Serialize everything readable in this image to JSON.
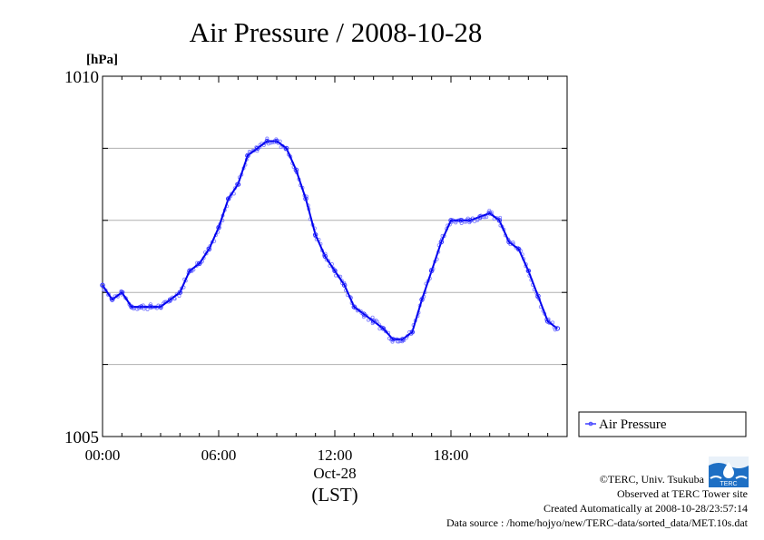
{
  "chart_data": {
    "type": "line",
    "title": "Air Pressure / 2008-10-28",
    "ylabel": "[hPa]",
    "xlabel": "Oct-28",
    "xsublabel": "(LST)",
    "ylim": [
      1005,
      1010
    ],
    "xlim": [
      0,
      24
    ],
    "y_tick_labels": [
      "1005",
      "1010"
    ],
    "x_tick_labels": [
      "00:00",
      "06:00",
      "12:00",
      "18:00"
    ],
    "grid": true,
    "legend_position": "right",
    "series": [
      {
        "name": "Air Pressure",
        "color": "#0000ff",
        "x": [
          0,
          0.5,
          1,
          1.5,
          2,
          2.5,
          3,
          3.5,
          4,
          4.5,
          5,
          5.5,
          6,
          6.5,
          7,
          7.5,
          8,
          8.5,
          9,
          9.5,
          10,
          10.5,
          11,
          11.5,
          12,
          12.5,
          13,
          13.5,
          14,
          14.5,
          15,
          15.5,
          16,
          16.5,
          17,
          17.5,
          18,
          18.5,
          19,
          19.5,
          20,
          20.5,
          21,
          21.5,
          22,
          22.5,
          23,
          23.5
        ],
        "values": [
          1007.1,
          1006.9,
          1007.0,
          1006.8,
          1006.8,
          1006.8,
          1006.8,
          1006.9,
          1007.0,
          1007.3,
          1007.4,
          1007.6,
          1007.9,
          1008.3,
          1008.5,
          1008.9,
          1009.0,
          1009.1,
          1009.1,
          1009.0,
          1008.7,
          1008.3,
          1007.8,
          1007.5,
          1007.3,
          1007.1,
          1006.8,
          1006.7,
          1006.6,
          1006.5,
          1006.35,
          1006.35,
          1006.45,
          1006.9,
          1007.3,
          1007.7,
          1008.0,
          1008.0,
          1008.0,
          1008.05,
          1008.1,
          1008.0,
          1007.7,
          1007.6,
          1007.3,
          1006.95,
          1006.6,
          1006.5
        ]
      }
    ]
  },
  "credits": {
    "copyright": "©TERC, Univ. Tsukuba",
    "observed": "Observed at TERC Tower site",
    "created": "Created Automatically at 2008-10-28/23:57:14",
    "source": "Data source : /home/hojyo/new/TERC-data/sorted_data/MET.10s.dat",
    "logo_text": "TERC"
  }
}
